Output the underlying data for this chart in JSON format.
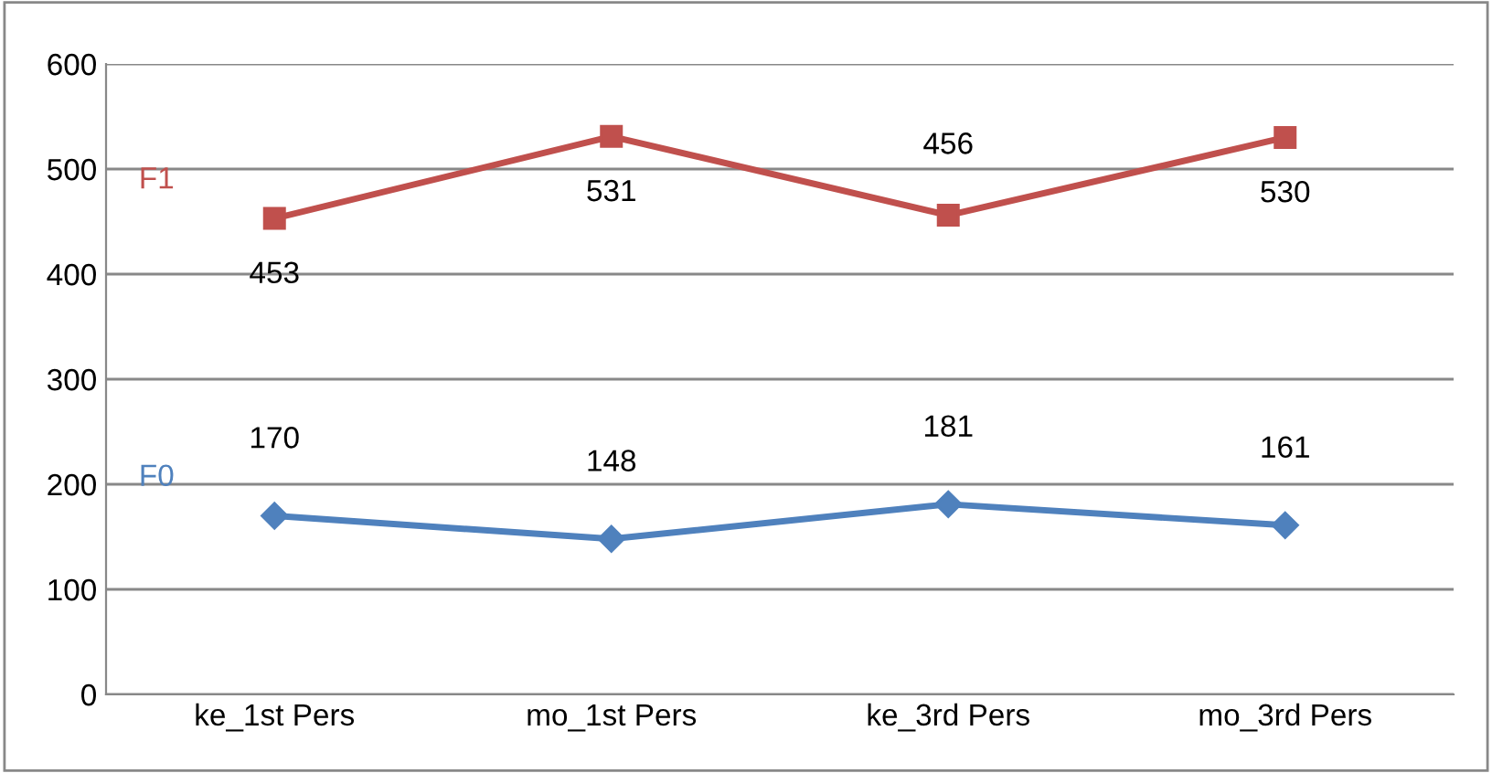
{
  "chart_data": {
    "type": "line",
    "categories": [
      "ke_1st Pers",
      "mo_1st Pers",
      "ke_3rd Pers",
      "mo_3rd Pers"
    ],
    "series": [
      {
        "name": "F0",
        "color": "#4f81bd",
        "marker": "diamond",
        "values": [
          170,
          148,
          181,
          161
        ]
      },
      {
        "name": "F1",
        "color": "#c0504d",
        "marker": "square",
        "values": [
          453,
          531,
          456,
          530
        ]
      }
    ],
    "ylim": [
      0,
      600
    ],
    "yticks": [
      0,
      100,
      200,
      300,
      400,
      500,
      600
    ],
    "grid": "y",
    "legend": false,
    "data_labels": true
  }
}
